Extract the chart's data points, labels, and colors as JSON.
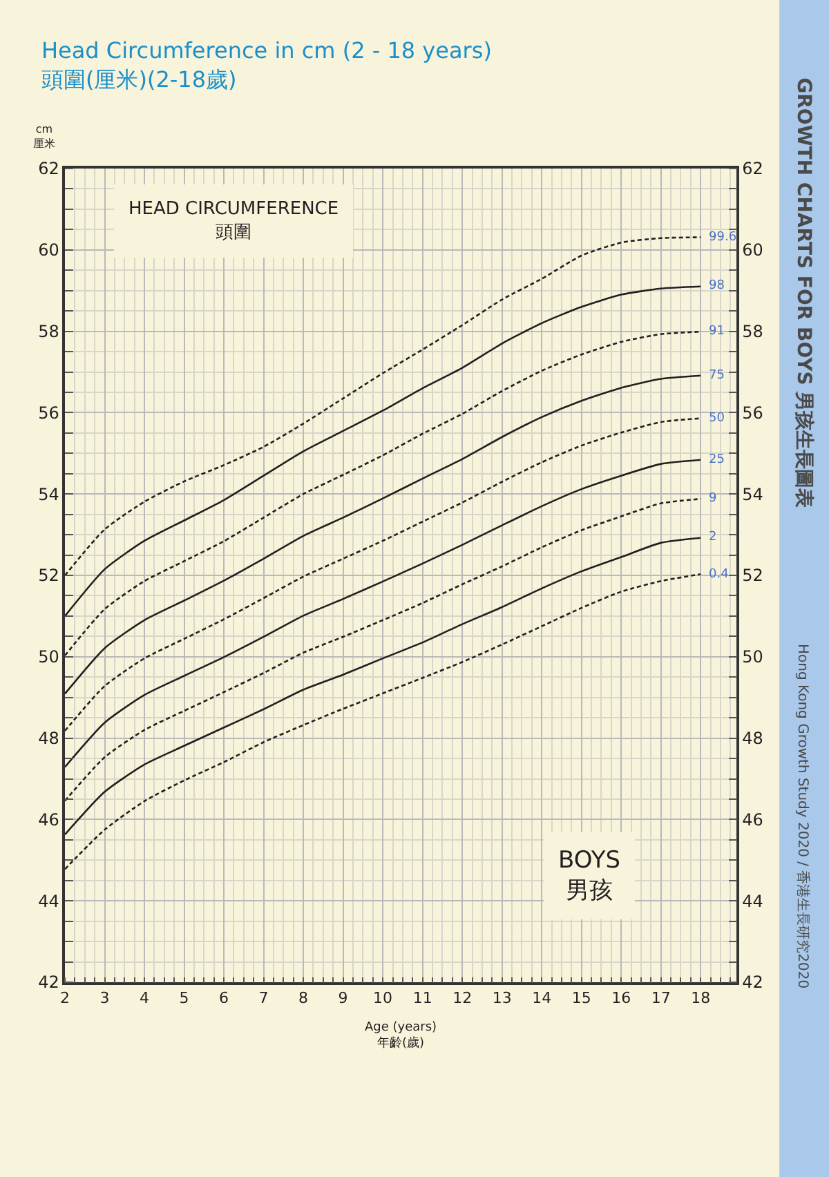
{
  "chart_data": {
    "type": "line",
    "title": "Head Circumference in cm (2 - 18 years)",
    "subtitle": "頭圍(厘米)(2-18歲)",
    "xlabel": "Age (years)\n年齡(歲)",
    "ylabel": "cm\n厘米",
    "x": [
      2,
      3,
      4,
      5,
      6,
      7,
      8,
      9,
      10,
      11,
      12,
      13,
      14,
      15,
      16,
      17,
      18
    ],
    "xlim": [
      2,
      18.9
    ],
    "xticks": [
      2,
      3,
      4,
      5,
      6,
      7,
      8,
      9,
      10,
      11,
      12,
      13,
      14,
      15,
      16,
      17,
      18
    ],
    "ylim": [
      42,
      62
    ],
    "yticks": [
      42,
      44,
      46,
      48,
      50,
      52,
      54,
      56,
      58,
      60,
      62
    ],
    "y2lim": [
      42,
      62
    ],
    "y2ticks": [
      42,
      44,
      46,
      48,
      50,
      52,
      54,
      56,
      58,
      60,
      62
    ],
    "grid": true,
    "legend": false,
    "marker": "none",
    "annotations": [
      "HEAD CIRCUMFERENCE\n頭圍",
      "BOYS\n男孩",
      "GROWTH CHARTS FOR BOYS 男孩生長圖表",
      "Hong Kong Growth Study 2020 / 香港生長研究2020"
    ],
    "series": [
      {
        "name": "99.6",
        "color": "#231f20",
        "line_style": "dashed",
        "values": [
          52.0,
          53.13,
          53.81,
          54.31,
          54.71,
          55.16,
          55.73,
          56.35,
          56.97,
          57.55,
          58.15,
          58.78,
          59.29,
          59.86,
          60.18,
          60.29,
          60.31
        ]
      },
      {
        "name": "98",
        "color": "#231f20",
        "line_style": "solid",
        "values": [
          51.0,
          52.15,
          52.85,
          53.35,
          53.85,
          54.45,
          55.05,
          55.55,
          56.05,
          56.6,
          57.1,
          57.7,
          58.2,
          58.6,
          58.9,
          59.05,
          59.1
        ]
      },
      {
        "name": "91",
        "color": "#231f20",
        "line_style": "dashed",
        "values": [
          50.03,
          51.17,
          51.86,
          52.35,
          52.84,
          53.42,
          54.0,
          54.47,
          54.95,
          55.48,
          55.97,
          56.53,
          57.03,
          57.43,
          57.74,
          57.93,
          57.99
        ]
      },
      {
        "name": "75",
        "color": "#231f20",
        "line_style": "solid",
        "values": [
          49.09,
          50.21,
          50.9,
          51.38,
          51.87,
          52.41,
          52.97,
          53.42,
          53.89,
          54.38,
          54.86,
          55.4,
          55.89,
          56.29,
          56.61,
          56.83,
          56.91
        ]
      },
      {
        "name": "50",
        "color": "#231f20",
        "line_style": "dashed",
        "values": [
          48.18,
          49.28,
          49.96,
          50.44,
          50.92,
          51.44,
          51.97,
          52.41,
          52.85,
          53.32,
          53.79,
          54.3,
          54.78,
          55.19,
          55.51,
          55.77,
          55.86
        ]
      },
      {
        "name": "25",
        "color": "#231f20",
        "line_style": "solid",
        "values": [
          47.29,
          48.38,
          49.06,
          49.53,
          49.99,
          50.49,
          51.01,
          51.42,
          51.85,
          52.29,
          52.75,
          53.23,
          53.7,
          54.12,
          54.45,
          54.74,
          54.84
        ]
      },
      {
        "name": "9",
        "color": "#231f20",
        "line_style": "dashed",
        "values": [
          46.46,
          47.53,
          48.2,
          48.67,
          49.13,
          49.6,
          50.1,
          50.49,
          50.9,
          51.32,
          51.78,
          52.22,
          52.69,
          53.11,
          53.45,
          53.77,
          53.88
        ]
      },
      {
        "name": "2",
        "color": "#231f20",
        "line_style": "solid",
        "values": [
          45.63,
          46.68,
          47.35,
          47.81,
          48.26,
          48.71,
          49.19,
          49.56,
          49.96,
          50.35,
          50.8,
          51.22,
          51.68,
          52.1,
          52.45,
          52.8,
          52.92
        ]
      },
      {
        "name": "0.4",
        "color": "#231f20",
        "line_style": "dashed",
        "values": [
          44.78,
          45.75,
          46.45,
          46.96,
          47.41,
          47.9,
          48.32,
          48.72,
          49.1,
          49.48,
          49.87,
          50.3,
          50.75,
          51.2,
          51.6,
          51.86,
          52.03
        ]
      }
    ]
  }
}
